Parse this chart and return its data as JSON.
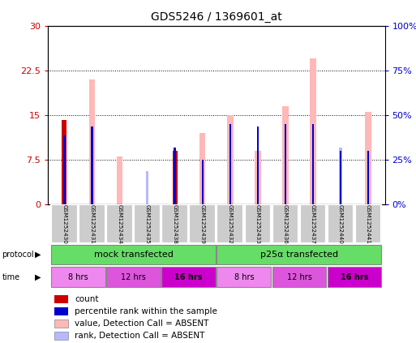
{
  "title": "GDS5246 / 1369601_at",
  "samples": [
    "GSM1252430",
    "GSM1252431",
    "GSM1252434",
    "GSM1252435",
    "GSM1252438",
    "GSM1252439",
    "GSM1252432",
    "GSM1252433",
    "GSM1252436",
    "GSM1252437",
    "GSM1252440",
    "GSM1252441"
  ],
  "count_values": [
    14.2,
    0,
    0,
    0,
    9.0,
    0,
    0,
    0,
    0,
    0,
    0,
    0
  ],
  "rank_values": [
    11.5,
    13.0,
    0,
    0,
    9.5,
    7.5,
    13.5,
    13.0,
    13.5,
    13.5,
    9.0,
    9.0
  ],
  "value_absent": [
    0,
    21.0,
    8.0,
    0,
    0,
    12.0,
    15.0,
    9.0,
    16.5,
    24.5,
    0,
    15.5
  ],
  "rank_absent": [
    0,
    0,
    0,
    5.5,
    0,
    0,
    0,
    0,
    0,
    0,
    9.5,
    0
  ],
  "left_yticks": [
    0,
    7.5,
    15,
    22.5,
    30
  ],
  "right_yticks": [
    0,
    25,
    50,
    75,
    100
  ],
  "right_yticklabels": [
    "0%",
    "25%",
    "50%",
    "75%",
    "100%"
  ],
  "ylim": [
    0,
    30
  ],
  "right_ylim": [
    0,
    100
  ],
  "color_count": "#cc0000",
  "color_rank": "#0000cc",
  "color_value_absent": "#ffb8b8",
  "color_rank_absent": "#b8b8ff",
  "protocol_labels": [
    "mock transfected",
    "p25α transfected"
  ],
  "time_labels": [
    "8 hrs",
    "12 hrs",
    "16 hrs",
    "8 hrs",
    "12 hrs",
    "16 hrs"
  ],
  "time_colors": [
    "#ee88ee",
    "#dd55dd",
    "#cc00cc",
    "#ee88ee",
    "#dd55dd",
    "#cc00cc"
  ],
  "legend_items": [
    {
      "label": "count",
      "color": "#cc0000"
    },
    {
      "label": "percentile rank within the sample",
      "color": "#0000cc"
    },
    {
      "label": "value, Detection Call = ABSENT",
      "color": "#ffb8b8"
    },
    {
      "label": "rank, Detection Call = ABSENT",
      "color": "#b8b8ff"
    }
  ]
}
